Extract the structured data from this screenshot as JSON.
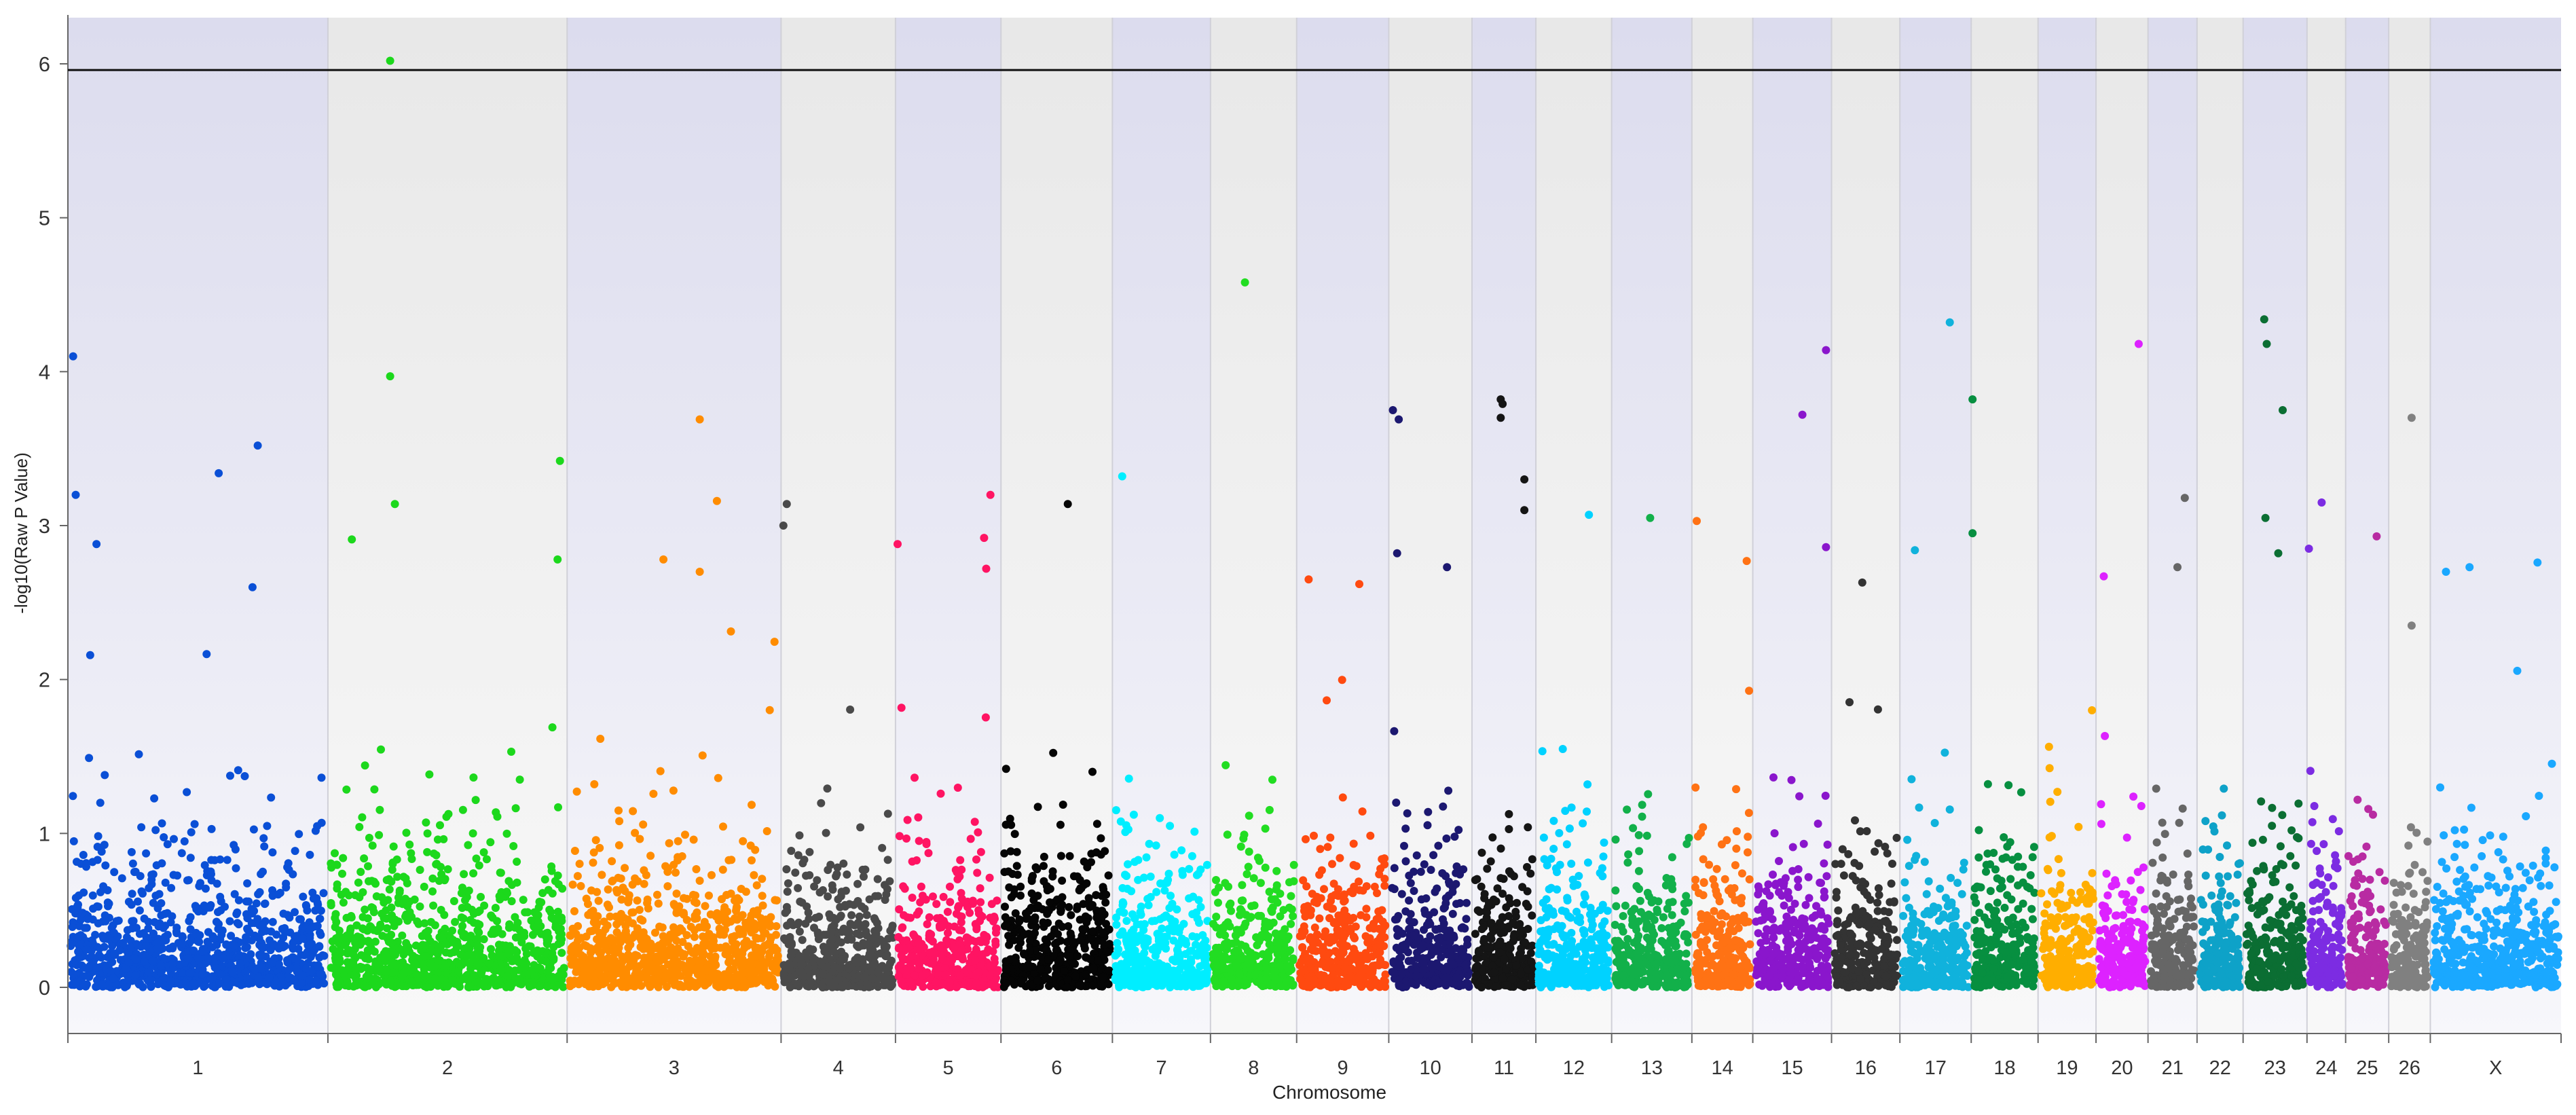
{
  "chart_data": {
    "type": "scatter",
    "subtype": "manhattan",
    "title": "",
    "xlabel": "Chromosome",
    "ylabel": "-log10(Raw P Value)",
    "ylim": [
      -0.3,
      6.3
    ],
    "yticks": [
      "0",
      "1",
      "2",
      "3",
      "4",
      "5",
      "6"
    ],
    "ytick_values": [
      0,
      1,
      2,
      3,
      4,
      5,
      6
    ],
    "threshold": 5.96,
    "legend": "none",
    "grid": "alternating shaded chromosome bands",
    "chromosomes": [
      {
        "label": "1",
        "color": "#0a4fd6",
        "span": 17.5
      },
      {
        "label": "2",
        "color": "#1cd81c",
        "span": 16.1
      },
      {
        "label": "3",
        "color": "#ff8c00",
        "span": 14.4
      },
      {
        "label": "4",
        "color": "#4a4a4a",
        "span": 7.7
      },
      {
        "label": "5",
        "color": "#ff1463",
        "span": 7.1
      },
      {
        "label": "6",
        "color": "#050505",
        "span": 7.5
      },
      {
        "label": "7",
        "color": "#00eeff",
        "span": 6.6
      },
      {
        "label": "8",
        "color": "#22dd22",
        "span": 5.8
      },
      {
        "label": "9",
        "color": "#ff4a10",
        "span": 6.2
      },
      {
        "label": "10",
        "color": "#1c1870",
        "span": 5.6
      },
      {
        "label": "11",
        "color": "#151515",
        "span": 4.3
      },
      {
        "label": "12",
        "color": "#00d2ff",
        "span": 5.1
      },
      {
        "label": "13",
        "color": "#12b04a",
        "span": 5.4
      },
      {
        "label": "14",
        "color": "#ff7214",
        "span": 4.1
      },
      {
        "label": "15",
        "color": "#8a16cc",
        "span": 5.3
      },
      {
        "label": "16",
        "color": "#333333",
        "span": 4.6
      },
      {
        "label": "17",
        "color": "#10b2dc",
        "span": 4.8
      },
      {
        "label": "18",
        "color": "#078f40",
        "span": 4.5
      },
      {
        "label": "19",
        "color": "#ffae00",
        "span": 3.9
      },
      {
        "label": "20",
        "color": "#dd22ff",
        "span": 3.5
      },
      {
        "label": "21",
        "color": "#666666",
        "span": 3.3
      },
      {
        "label": "22",
        "color": "#0ea2c8",
        "span": 3.1
      },
      {
        "label": "23",
        "color": "#0b6e33",
        "span": 4.3
      },
      {
        "label": "24",
        "color": "#7c2ce2",
        "span": 2.6
      },
      {
        "label": "25",
        "color": "#b82ba2",
        "span": 2.9
      },
      {
        "label": "26",
        "color": "#808080",
        "span": 2.8
      },
      {
        "label": "X",
        "color": "#1aa8ff",
        "span": 8.8
      }
    ],
    "top_hits": [
      {
        "chr": "1",
        "pos": 0.02,
        "y": 4.1
      },
      {
        "chr": "1",
        "pos": 0.03,
        "y": 3.2
      },
      {
        "chr": "1",
        "pos": 0.11,
        "y": 2.88
      },
      {
        "chr": "1",
        "pos": 0.58,
        "y": 3.34
      },
      {
        "chr": "1",
        "pos": 0.73,
        "y": 3.52
      },
      {
        "chr": "1",
        "pos": 0.71,
        "y": 2.6
      },
      {
        "chr": "2",
        "pos": 0.26,
        "y": 6.02
      },
      {
        "chr": "2",
        "pos": 0.26,
        "y": 3.97
      },
      {
        "chr": "2",
        "pos": 0.28,
        "y": 3.14
      },
      {
        "chr": "2",
        "pos": 0.1,
        "y": 2.91
      },
      {
        "chr": "2",
        "pos": 0.97,
        "y": 3.42
      },
      {
        "chr": "2",
        "pos": 0.96,
        "y": 2.78
      },
      {
        "chr": "3",
        "pos": 0.62,
        "y": 3.69
      },
      {
        "chr": "3",
        "pos": 0.7,
        "y": 3.16
      },
      {
        "chr": "3",
        "pos": 0.45,
        "y": 2.78
      },
      {
        "chr": "3",
        "pos": 0.62,
        "y": 2.7
      },
      {
        "chr": "4",
        "pos": 0.05,
        "y": 3.14
      },
      {
        "chr": "4",
        "pos": 0.02,
        "y": 3.0
      },
      {
        "chr": "5",
        "pos": 0.02,
        "y": 2.88
      },
      {
        "chr": "5",
        "pos": 0.9,
        "y": 3.2
      },
      {
        "chr": "5",
        "pos": 0.84,
        "y": 2.92
      },
      {
        "chr": "5",
        "pos": 0.86,
        "y": 2.72
      },
      {
        "chr": "6",
        "pos": 0.6,
        "y": 3.14
      },
      {
        "chr": "7",
        "pos": 0.1,
        "y": 3.32
      },
      {
        "chr": "8",
        "pos": 0.4,
        "y": 4.58
      },
      {
        "chr": "9",
        "pos": 0.13,
        "y": 2.65
      },
      {
        "chr": "9",
        "pos": 0.68,
        "y": 2.62
      },
      {
        "chr": "10",
        "pos": 0.05,
        "y": 3.75
      },
      {
        "chr": "10",
        "pos": 0.12,
        "y": 3.69
      },
      {
        "chr": "10",
        "pos": 0.1,
        "y": 2.82
      },
      {
        "chr": "10",
        "pos": 0.7,
        "y": 2.73
      },
      {
        "chr": "11",
        "pos": 0.45,
        "y": 3.82
      },
      {
        "chr": "11",
        "pos": 0.48,
        "y": 3.79
      },
      {
        "chr": "11",
        "pos": 0.45,
        "y": 3.7
      },
      {
        "chr": "11",
        "pos": 0.82,
        "y": 3.3
      },
      {
        "chr": "11",
        "pos": 0.82,
        "y": 3.1
      },
      {
        "chr": "12",
        "pos": 0.7,
        "y": 3.07
      },
      {
        "chr": "13",
        "pos": 0.48,
        "y": 3.05
      },
      {
        "chr": "14",
        "pos": 0.08,
        "y": 3.03
      },
      {
        "chr": "14",
        "pos": 0.9,
        "y": 2.77
      },
      {
        "chr": "15",
        "pos": 0.63,
        "y": 3.72
      },
      {
        "chr": "15",
        "pos": 0.93,
        "y": 4.14
      },
      {
        "chr": "15",
        "pos": 0.93,
        "y": 2.86
      },
      {
        "chr": "16",
        "pos": 0.45,
        "y": 2.63
      },
      {
        "chr": "17",
        "pos": 0.7,
        "y": 4.32
      },
      {
        "chr": "17",
        "pos": 0.21,
        "y": 2.84
      },
      {
        "chr": "18",
        "pos": 0.02,
        "y": 3.82
      },
      {
        "chr": "18",
        "pos": 0.02,
        "y": 2.95
      },
      {
        "chr": "20",
        "pos": 0.82,
        "y": 4.18
      },
      {
        "chr": "20",
        "pos": 0.15,
        "y": 2.67
      },
      {
        "chr": "21",
        "pos": 0.75,
        "y": 3.18
      },
      {
        "chr": "21",
        "pos": 0.6,
        "y": 2.73
      },
      {
        "chr": "23",
        "pos": 0.33,
        "y": 4.34
      },
      {
        "chr": "23",
        "pos": 0.37,
        "y": 4.18
      },
      {
        "chr": "23",
        "pos": 0.62,
        "y": 3.75
      },
      {
        "chr": "23",
        "pos": 0.35,
        "y": 3.05
      },
      {
        "chr": "23",
        "pos": 0.55,
        "y": 2.82
      },
      {
        "chr": "24",
        "pos": 0.38,
        "y": 3.15
      },
      {
        "chr": "24",
        "pos": 0.05,
        "y": 2.85
      },
      {
        "chr": "25",
        "pos": 0.72,
        "y": 2.93
      },
      {
        "chr": "26",
        "pos": 0.55,
        "y": 3.7
      },
      {
        "chr": "26",
        "pos": 0.55,
        "y": 2.35
      },
      {
        "chr": "X",
        "pos": 0.12,
        "y": 2.7
      },
      {
        "chr": "X",
        "pos": 0.3,
        "y": 2.73
      },
      {
        "chr": "X",
        "pos": 0.82,
        "y": 2.76
      }
    ]
  }
}
